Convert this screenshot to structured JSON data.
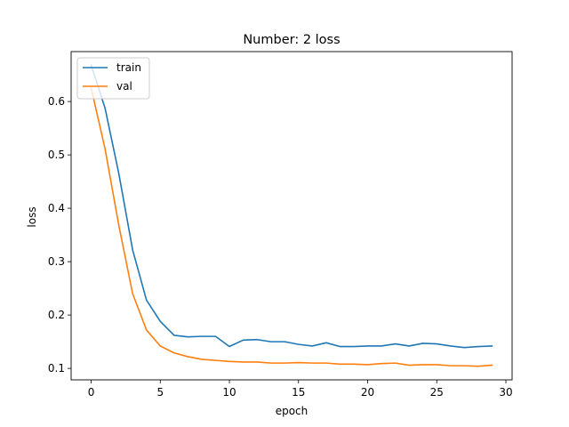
{
  "chart_data": {
    "type": "line",
    "title": "Number: 2 loss",
    "xlabel": "epoch",
    "ylabel": "loss",
    "xlim": [
      -1.45,
      30.45
    ],
    "ylim": [
      0.07855,
      0.6935
    ],
    "xticks": [
      0,
      5,
      10,
      15,
      20,
      25,
      30
    ],
    "yticks": [
      0.1,
      0.2,
      0.3,
      0.4,
      0.5,
      0.6
    ],
    "grid": false,
    "legend_position": "top-left",
    "x": [
      0,
      1,
      2,
      3,
      4,
      5,
      6,
      7,
      8,
      9,
      10,
      11,
      12,
      13,
      14,
      15,
      16,
      17,
      18,
      19,
      20,
      21,
      22,
      23,
      24,
      25,
      26,
      27,
      28,
      29
    ],
    "series": [
      {
        "name": "train",
        "color": "#1f77b4",
        "values": [
          0.668,
          0.588,
          0.465,
          0.322,
          0.228,
          0.188,
          0.162,
          0.159,
          0.16,
          0.16,
          0.141,
          0.153,
          0.154,
          0.15,
          0.15,
          0.145,
          0.142,
          0.148,
          0.141,
          0.141,
          0.142,
          0.142,
          0.146,
          0.142,
          0.147,
          0.146,
          0.142,
          0.139,
          0.141,
          0.142
        ]
      },
      {
        "name": "val",
        "color": "#ff7f0e",
        "values": [
          0.625,
          0.512,
          0.368,
          0.24,
          0.172,
          0.142,
          0.129,
          0.122,
          0.117,
          0.115,
          0.113,
          0.112,
          0.112,
          0.11,
          0.11,
          0.111,
          0.11,
          0.11,
          0.108,
          0.108,
          0.107,
          0.109,
          0.11,
          0.106,
          0.107,
          0.107,
          0.105,
          0.105,
          0.104,
          0.106
        ]
      }
    ]
  }
}
